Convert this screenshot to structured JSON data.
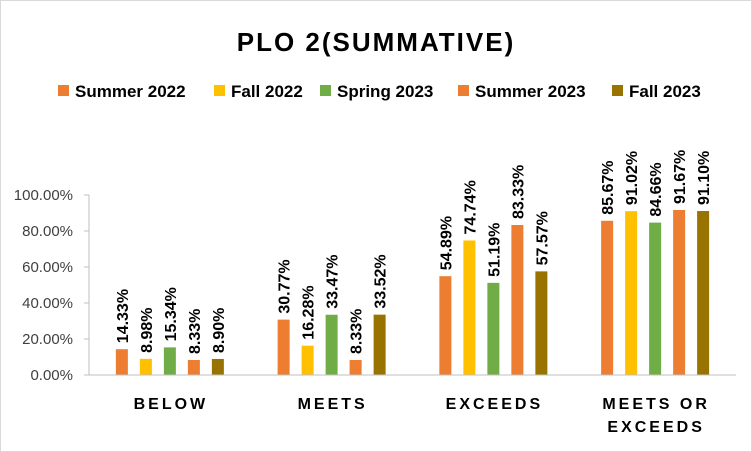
{
  "chart_data": {
    "type": "bar",
    "title": "PLO 2(SUMMATIVE)",
    "xlabel": "",
    "ylabel": "",
    "ylim": [
      0,
      100
    ],
    "yticks": [
      "0.00%",
      "20.00%",
      "40.00%",
      "60.00%",
      "80.00%",
      "100.00%"
    ],
    "categories": [
      [
        "BELOW"
      ],
      [
        "MEETS"
      ],
      [
        "EXCEEDS"
      ],
      [
        "MEETS OR",
        "EXCEEDS"
      ]
    ],
    "legend_position": "top",
    "grid": false,
    "series": [
      {
        "name": "Summer 2022",
        "color": "#ED7D31",
        "values": [
          14.33,
          30.77,
          54.89,
          85.67
        ],
        "labels": [
          "14.33%",
          "30.77%",
          "54.89%",
          "85.67%"
        ]
      },
      {
        "name": "Fall 2022",
        "color": "#FFC000",
        "values": [
          8.98,
          16.28,
          74.74,
          91.02
        ],
        "labels": [
          "8.98%",
          "16.28%",
          "74.74%",
          "91.02%"
        ]
      },
      {
        "name": "Spring 2023",
        "color": "#70AD47",
        "values": [
          15.34,
          33.47,
          51.19,
          84.66
        ],
        "labels": [
          "15.34%",
          "33.47%",
          "51.19%",
          "84.66%"
        ]
      },
      {
        "name": "Summer 2023",
        "color": "#ED7D31",
        "values": [
          8.33,
          8.33,
          83.33,
          91.67
        ],
        "labels": [
          "8.33%",
          "8.33%",
          "83.33%",
          "91.67%"
        ]
      },
      {
        "name": "Fall 2023",
        "color": "#997300",
        "values": [
          8.9,
          33.52,
          57.57,
          91.1
        ],
        "labels": [
          "8.90%",
          "33.52%",
          "57.57%",
          "91.10%"
        ]
      }
    ]
  }
}
